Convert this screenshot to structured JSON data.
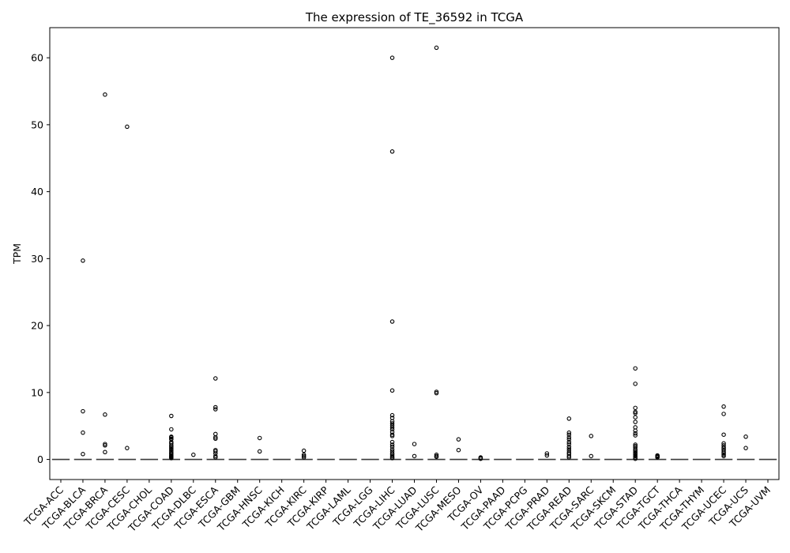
{
  "chart_data": {
    "type": "box",
    "title": "The expression of TE_36592 in TCGA",
    "xlabel": "",
    "ylabel": "TPM",
    "ylim": [
      -3,
      64.5
    ],
    "yticks": [
      0,
      10,
      20,
      30,
      40,
      50,
      60
    ],
    "grid": false,
    "legend": "none",
    "categories": [
      "TCGA-ACC",
      "TCGA-BLCA",
      "TCGA-BRCA",
      "TCGA-CESC",
      "TCGA-CHOL",
      "TCGA-COAD",
      "TCGA-DLBC",
      "TCGA-ESCA",
      "TCGA-GBM",
      "TCGA-HNSC",
      "TCGA-KICH",
      "TCGA-KIRC",
      "TCGA-KIRP",
      "TCGA-LAML",
      "TCGA-LGG",
      "TCGA-LIHC",
      "TCGA-LUAD",
      "TCGA-LUSC",
      "TCGA-MESO",
      "TCGA-OV",
      "TCGA-PAAD",
      "TCGA-PCPG",
      "TCGA-PRAD",
      "TCGA-READ",
      "TCGA-SARC",
      "TCGA-SKCM",
      "TCGA-STAD",
      "TCGA-TGCT",
      "TCGA-THCA",
      "TCGA-THYM",
      "TCGA-UCEC",
      "TCGA-UCS",
      "TCGA-UVM"
    ],
    "median": [
      0,
      0,
      0,
      0,
      0,
      0,
      0,
      0,
      0,
      0,
      0,
      0,
      0,
      0,
      0,
      0,
      0,
      0,
      0,
      0,
      0,
      0,
      0,
      0,
      0,
      0,
      0,
      0,
      0,
      0,
      0,
      0,
      0
    ],
    "outliers": [
      [],
      [
        29.7,
        7.2,
        4.0,
        0.8
      ],
      [
        54.5,
        6.7,
        2.3,
        2.1,
        1.1
      ],
      [
        49.7,
        1.7
      ],
      [],
      [
        6.5,
        4.5,
        3.4,
        3.3,
        3.1,
        3.0,
        2.6,
        2.4,
        2.1,
        1.9,
        1.7,
        1.5,
        1.3,
        1.1,
        0.9,
        0.8,
        0.6,
        0.5,
        0.4,
        0.3,
        0.2
      ],
      [
        0.7
      ],
      [
        12.1,
        7.8,
        7.5,
        3.8,
        3.3,
        3.1,
        1.4,
        1.2,
        0.9,
        0.5,
        0.3
      ],
      [],
      [
        3.2,
        1.2
      ],
      [],
      [
        1.3,
        0.7,
        0.5,
        0.3
      ],
      [],
      [],
      [],
      [
        60.0,
        46.0,
        20.6,
        10.3,
        6.6,
        6.2,
        5.7,
        5.4,
        5.1,
        4.8,
        4.5,
        4.1,
        3.7,
        3.5,
        2.6,
        2.2,
        1.9,
        1.5,
        1.2,
        0.9,
        0.7,
        0.5,
        0.3,
        0.2
      ],
      [
        2.3,
        0.5
      ],
      [
        61.5,
        10.1,
        9.9,
        0.7,
        0.5,
        0.4
      ],
      [
        3.0,
        1.4
      ],
      [
        0.3,
        0.2,
        0.1
      ],
      [],
      [],
      [
        0.9,
        0.6
      ],
      [
        6.1,
        4.0,
        3.7,
        3.3,
        3.0,
        2.6,
        2.3,
        1.9,
        1.6,
        1.3,
        1.0,
        0.8,
        0.5,
        0.3
      ],
      [
        3.5,
        0.5
      ],
      [],
      [
        13.6,
        11.3,
        7.7,
        7.1,
        6.9,
        6.3,
        5.6,
        4.8,
        4.3,
        3.9,
        3.6,
        2.2,
        2.0,
        1.8,
        1.5,
        1.3,
        1.1,
        0.9,
        0.7,
        0.5,
        0.3,
        0.1
      ],
      [
        0.6,
        0.5,
        0.4,
        0.3
      ],
      [],
      [],
      [
        7.9,
        6.8,
        3.7,
        2.4,
        2.1,
        1.8,
        1.6,
        1.4,
        1.1,
        0.9,
        0.7,
        0.5
      ],
      [
        3.4,
        1.7
      ],
      []
    ]
  }
}
